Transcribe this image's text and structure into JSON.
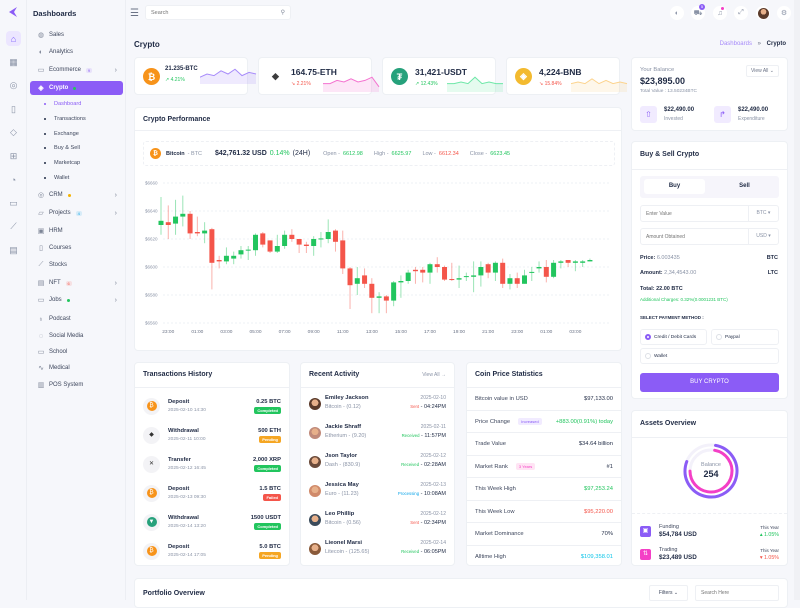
{
  "colors": {
    "accent": "#8b5cf6",
    "green": "#22c55e",
    "red": "#f4554a",
    "pink": "#f43fc6"
  },
  "sidebar": {
    "title": "Dashboards",
    "rail_icons": [
      "home-icon",
      "apps-icon",
      "layers-icon",
      "file-icon",
      "diamond-icon",
      "gift-icon",
      "compass-icon",
      "layout-icon",
      "chart-icon",
      "table-icon"
    ],
    "items": [
      {
        "label": "Sales",
        "icon": "sales-icon"
      },
      {
        "label": "Analytics",
        "icon": "analytics-icon"
      },
      {
        "label": "Ecommerce",
        "icon": "ecommerce-icon",
        "badge": "9",
        "badge_color": "#8b5cf6",
        "chevron": true
      },
      {
        "label": "Crypto",
        "icon": "crypto-icon",
        "badge": "",
        "badge_color": "#22c55e",
        "active": true
      },
      {
        "label": "CRM",
        "icon": "crm-icon",
        "badge": "",
        "badge_color": "#f5b301",
        "chevron": true
      },
      {
        "label": "Projects",
        "icon": "folder-icon",
        "badge": "4",
        "badge_color": "#0ea5e9",
        "chevron": true
      },
      {
        "label": "HRM",
        "icon": "hrm-icon"
      },
      {
        "label": "Courses",
        "icon": "book-icon"
      },
      {
        "label": "Stocks",
        "icon": "stocks-icon"
      },
      {
        "label": "NFT",
        "icon": "nft-icon",
        "badge": "6",
        "badge_color": "#f4554a",
        "chevron": true
      },
      {
        "label": "Jobs",
        "icon": "briefcase-icon",
        "badge": "",
        "badge_color": "#22c55e",
        "chevron": true
      },
      {
        "label": "Podcast",
        "icon": "mic-icon"
      },
      {
        "label": "Social Media",
        "icon": "chat-icon"
      },
      {
        "label": "School",
        "icon": "school-icon"
      },
      {
        "label": "Medical",
        "icon": "pulse-icon"
      },
      {
        "label": "POS System",
        "icon": "shop-icon"
      }
    ],
    "crypto_sub": [
      "Dashboard",
      "Transactions",
      "Exchange",
      "Buy & Sell",
      "Marketcap",
      "Wallet"
    ]
  },
  "header": {
    "search_placeholder": "Search",
    "cart_count": "5"
  },
  "page": {
    "title": "Crypto",
    "breadcrumb": [
      "Dashboards",
      "Crypto"
    ]
  },
  "tickers": [
    {
      "value": "21.235-BTC",
      "change": "4.21%",
      "dir": "up",
      "color": "#f7931a",
      "line": "#a78bfa",
      "glyph": "₿",
      "spark": [
        3,
        5,
        4,
        7,
        5,
        8,
        4,
        6,
        5
      ]
    },
    {
      "value": "164.75-ETH",
      "change": "2.21%",
      "dir": "down",
      "color": "#3c3c3d",
      "line": "#f472d0",
      "glyph": "◆",
      "spark": [
        4,
        4,
        6,
        5,
        7,
        5,
        6,
        8,
        2
      ]
    },
    {
      "value": "31,421-USDT",
      "change": "12.43%",
      "dir": "up",
      "color": "#26a17b",
      "line": "#6ee7a8",
      "glyph": "₮",
      "spark": [
        4,
        4,
        5,
        4,
        8,
        4,
        5,
        4,
        4
      ]
    },
    {
      "value": "4,224-BNB",
      "change": "15.84%",
      "dir": "down",
      "color": "#f3ba2f",
      "line": "#fcd38d",
      "glyph": "◈",
      "spark": [
        4,
        5,
        4,
        7,
        4,
        6,
        4,
        5,
        4
      ]
    }
  ],
  "balance": {
    "label": "Your Balance",
    "view_all": "View All",
    "amount": "$23,895.00",
    "total": "Total Value : 13.50234BTC",
    "invested_amount": "$22,490.00",
    "invested_label": "Invested",
    "expenditure_amount": "$22,490.00",
    "expenditure_label": "Expenditure"
  },
  "performance": {
    "title": "Crypto Performance",
    "coin": "Bitcoin",
    "sym": "- BTC",
    "price": "$42,761.32 USD",
    "pct": "0.14%",
    "period": "(24H)",
    "open_label": "Open -",
    "open": "6612.98",
    "high_label": "High -",
    "high": "6625.97",
    "low_label": "Low -",
    "low": "6612.34",
    "close_label": "Close -",
    "close": "6623.45"
  },
  "chart_data": {
    "type": "candlestick",
    "ylim": [
      6560,
      6660
    ],
    "yticks": [
      "$6660",
      "$6640",
      "$6620",
      "$6600",
      "$6580",
      "$6560"
    ],
    "xticks": [
      "23:00",
      "01:00",
      "03:00",
      "05:00",
      "07:00",
      "09:00",
      "11:00",
      "13:00",
      "15:00",
      "17:00",
      "19:00",
      "21:00",
      "23:00",
      "01:00",
      "03:00"
    ],
    "grid": true,
    "up_color": "#22c55e",
    "down_color": "#f4554a",
    "ohlc": [
      [
        6630,
        6650,
        6623,
        6633
      ],
      [
        6632,
        6644,
        6620,
        6630
      ],
      [
        6631,
        6648,
        6623,
        6636
      ],
      [
        6636,
        6651,
        6629,
        6638
      ],
      [
        6638,
        6640,
        6620,
        6624
      ],
      [
        6625,
        6636,
        6622,
        6624
      ],
      [
        6624,
        6632,
        6617,
        6626
      ],
      [
        6627,
        6628,
        6584,
        6603
      ],
      [
        6605,
        6608,
        6599,
        6604
      ],
      [
        6604,
        6614,
        6602,
        6608
      ],
      [
        6606,
        6611,
        6602,
        6608
      ],
      [
        6609,
        6615,
        6606,
        6612
      ],
      [
        6612,
        6615,
        6605,
        6612.4
      ],
      [
        6612,
        6624,
        6608,
        6623
      ],
      [
        6624,
        6625,
        6614,
        6616
      ],
      [
        6619,
        6619,
        6610,
        6611
      ],
      [
        6611,
        6623,
        6610,
        6615
      ],
      [
        6615,
        6626,
        6613,
        6623
      ],
      [
        6623,
        6627,
        6618,
        6620
      ],
      [
        6620,
        6620,
        6610,
        6616
      ],
      [
        6616,
        6618,
        6610,
        6615
      ],
      [
        6615,
        6622,
        6608,
        6620
      ],
      [
        6620,
        6625,
        6614,
        6620.4
      ],
      [
        6620,
        6634,
        6617,
        6625
      ],
      [
        6626,
        6627,
        6611,
        6618
      ],
      [
        6619,
        6626,
        6595,
        6599
      ],
      [
        6599,
        6600,
        6570,
        6587
      ],
      [
        6588,
        6600,
        6580,
        6592
      ],
      [
        6594,
        6599,
        6585,
        6588
      ],
      [
        6588,
        6592,
        6567,
        6578
      ],
      [
        6578,
        6582,
        6567,
        6579
      ],
      [
        6579,
        6580,
        6567,
        6576
      ],
      [
        6576,
        6590,
        6572,
        6589
      ],
      [
        6589,
        6594,
        6578,
        6590
      ],
      [
        6590,
        6598,
        6588,
        6596
      ],
      [
        6598,
        6600,
        6588,
        6597
      ],
      [
        6598,
        6600,
        6589,
        6596
      ],
      [
        6596,
        6603,
        6588,
        6602
      ],
      [
        6602,
        6607,
        6596,
        6600
      ],
      [
        6600,
        6601,
        6590,
        6591
      ],
      [
        6591.4,
        6603,
        6590,
        6591
      ],
      [
        6591,
        6601,
        6585,
        6592
      ],
      [
        6593,
        6596,
        6590,
        6593.5
      ],
      [
        6593,
        6604,
        6582,
        6594
      ],
      [
        6594,
        6604,
        6586,
        6600
      ],
      [
        6602,
        6603,
        6592,
        6596
      ],
      [
        6596,
        6604,
        6590,
        6603
      ],
      [
        6603,
        6606,
        6585,
        6588
      ],
      [
        6588,
        6595,
        6584,
        6592
      ],
      [
        6592,
        6596,
        6585,
        6588
      ],
      [
        6588,
        6598,
        6588,
        6594
      ],
      [
        6596,
        6600,
        6590,
        6596.5
      ],
      [
        6599,
        6604,
        6596,
        6600
      ],
      [
        6600,
        6605,
        6589,
        6593
      ],
      [
        6593,
        6605,
        6592,
        6603
      ],
      [
        6603,
        6605,
        6599,
        6604
      ],
      [
        6605,
        6605,
        6600,
        6603
      ],
      [
        6603,
        6605,
        6597,
        6604
      ],
      [
        6603,
        6605,
        6600,
        6604
      ],
      [
        6604,
        6606,
        6604,
        6605
      ]
    ]
  },
  "buy_sell": {
    "title": "Buy & Sell Crypto",
    "tab_buy": "Buy",
    "tab_sell": "Sell",
    "enter_placeholder": "Enter Value",
    "enter_unit": "BTC",
    "amount_placeholder": "Amount Obtained",
    "amount_unit": "USD",
    "price_label": "Price:",
    "price": "6.003435",
    "price_unit": "BTC",
    "amount_label": "Amount:",
    "amount": "2,34,4543.00",
    "amount_unit2": "LTC",
    "total": "Total: 22.00 BTC",
    "charges": "Additional Charges: 0.32%(0.0001231 BTC)",
    "payment_label": "SELECT PAYMENT METHOD :",
    "methods": [
      "Credit / Debit Cards",
      "Paypal",
      "Wallet"
    ],
    "button": "BUY CRYPTO"
  },
  "transactions": {
    "title": "Transactions History",
    "items": [
      {
        "type": "Deposit",
        "date": "2025-02-10 14:30",
        "amount": "0.25 BTC",
        "status": "Completed",
        "coin": "btc"
      },
      {
        "type": "Withdrawal",
        "date": "2025-02-11 10:00",
        "amount": "500 ETH",
        "status": "Pending",
        "coin": "eth"
      },
      {
        "type": "Transfer",
        "date": "2025-02-12 16:45",
        "amount": "2,000 XRP",
        "status": "Completed",
        "coin": "xrp"
      },
      {
        "type": "Deposit",
        "date": "2025-02-13 09:30",
        "amount": "1.5 BTC",
        "status": "Failed",
        "coin": "btc"
      },
      {
        "type": "Withdrawal",
        "date": "2025-02-14 13:20",
        "amount": "1500 USDT",
        "status": "Completed",
        "coin": "usdt"
      },
      {
        "type": "Deposit",
        "date": "2025-02-14 17:05",
        "amount": "5.0 BTC",
        "status": "Pending",
        "coin": "btc"
      }
    ]
  },
  "activity": {
    "title": "Recent Activity",
    "view_all": "View All",
    "items": [
      {
        "name": "Emiley Jackson",
        "asset": "Bitcoin - (0.12)",
        "date": "2025-02-10",
        "status": "Sent",
        "time": "- 04:24PM"
      },
      {
        "name": "Jackie Shraff",
        "asset": "Etherium - (9.20)",
        "date": "2025-02-11",
        "status": "Received",
        "time": "- 11:57PM"
      },
      {
        "name": "Json Taylor",
        "asset": "Dash - (830.9)",
        "date": "2025-02-12",
        "status": "Received",
        "time": "- 02:28AM"
      },
      {
        "name": "Jessica May",
        "asset": "Euro - (11.23)",
        "date": "2025-02-13",
        "status": "Processing",
        "time": "- 10:08AM"
      },
      {
        "name": "Leo Phillip",
        "asset": "Bitcoin - (0.56)",
        "date": "2025-02-12",
        "status": "Sent",
        "time": "- 02:34PM"
      },
      {
        "name": "Lieonel Marsi",
        "asset": "Litecoin - (125.65)",
        "date": "2025-02-14",
        "status": "Received",
        "time": "- 06:05PM"
      }
    ]
  },
  "coin_stats": {
    "title": "Coin Price Statistics",
    "rows": [
      {
        "label": "Bitcoin value in USD",
        "value": "$97,133.00",
        "tone": "dark"
      },
      {
        "label": "Price Change",
        "badge": "Increased",
        "badge_tone": "purple",
        "value": "+883.00(0.91%) today",
        "tone": "green"
      },
      {
        "label": "Trade Value",
        "value": "$34.64 billion",
        "tone": "dark"
      },
      {
        "label": "Market Rank",
        "badge": "3 Years",
        "badge_tone": "pink",
        "value": "#1",
        "tone": "dark"
      },
      {
        "label": "This Week High",
        "value": "$97,253.24",
        "tone": "green"
      },
      {
        "label": "This Week Low",
        "value": "$95,220.00",
        "tone": "red"
      },
      {
        "label": "Market Dominance",
        "value": "70%",
        "tone": "dark"
      },
      {
        "label": "Alltime High",
        "value": "$109,358.01",
        "tone": "cyan"
      }
    ]
  },
  "assets": {
    "title": "Assets Overview",
    "center_label": "Balance",
    "center_value": "254",
    "outer_pct": 78,
    "inner_pct": 72,
    "items": [
      {
        "label": "Funding",
        "amount": "$54,784 USD",
        "period": "This Year",
        "change": "1.05%",
        "dir": "up",
        "color": "#8b5cf6"
      },
      {
        "label": "Trading",
        "amount": "$23,489 USD",
        "period": "This Year",
        "change": "1.05%",
        "dir": "down",
        "color": "#f43fc6"
      }
    ]
  },
  "portfolio": {
    "title": "Portfolio Overview",
    "filters": "Filters",
    "search_placeholder": "Search Here"
  }
}
